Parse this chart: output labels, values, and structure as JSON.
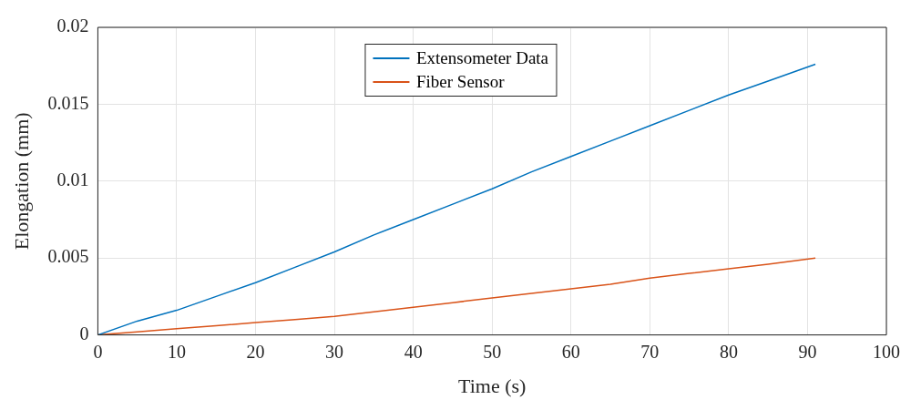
{
  "chart_data": {
    "type": "line",
    "xlabel": "Time (s)",
    "ylabel": "Elongation (mm)",
    "xlim": [
      0,
      100
    ],
    "xticks": [
      0,
      10,
      20,
      30,
      40,
      50,
      60,
      70,
      80,
      90,
      100
    ],
    "ylim": [
      0,
      0.02
    ],
    "yticks": [
      0,
      0.005,
      0.01,
      0.015,
      0.02
    ],
    "grid": true,
    "legend": "top",
    "marker": "none",
    "line_style": "solid",
    "x": [
      0,
      5,
      10,
      15,
      20,
      25,
      30,
      35,
      40,
      45,
      50,
      55,
      60,
      65,
      70,
      75,
      80,
      85,
      91
    ],
    "series": [
      {
        "name": "Extensometer Data",
        "color": "#0072bd",
        "values": [
          0,
          0.0009,
          0.0016,
          0.0025,
          0.0034,
          0.0044,
          0.0054,
          0.0065,
          0.0075,
          0.0085,
          0.0095,
          0.0106,
          0.0116,
          0.0126,
          0.0136,
          0.0146,
          0.0156,
          0.0165,
          0.0176
        ]
      },
      {
        "name": "Fiber Sensor",
        "color": "#d95319",
        "values": [
          0,
          0.0002,
          0.0004,
          0.0006,
          0.0008,
          0.001,
          0.0012,
          0.0015,
          0.0018,
          0.0021,
          0.0024,
          0.0027,
          0.003,
          0.0033,
          0.0037,
          0.004,
          0.0043,
          0.0046,
          0.005
        ]
      }
    ]
  }
}
